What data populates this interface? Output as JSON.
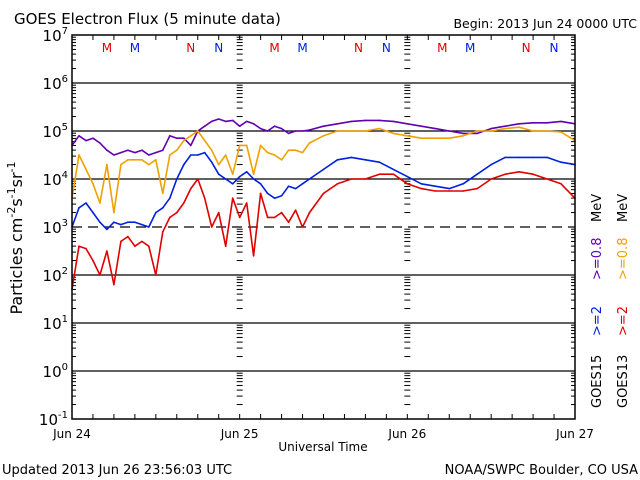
{
  "chart_data": {
    "type": "line",
    "title": "GOES Electron Flux (5 minute data)",
    "begin_label": "Begin: 2013 Jun 24 0000 UTC",
    "xlabel": "Universal Time",
    "ylabel": "Particles cm",
    "ylabel_parts": {
      "base": "Particles cm",
      "e1": "-2",
      "s": "s",
      "e2": "-1",
      "sr": "sr",
      "e3": "-1"
    },
    "yscale": "log",
    "ylim_exp": [
      -1,
      7
    ],
    "ytick_exps": [
      "7",
      "6",
      "5",
      "4",
      "3",
      "2",
      "1",
      "0",
      "-1"
    ],
    "ytick_base": "10",
    "xlim_hours": [
      0,
      72
    ],
    "xtick_labels": [
      "Jun 24",
      "Jun 25",
      "Jun 26",
      "Jun 27"
    ],
    "dashed_threshold_exp": 3,
    "markers": [
      {
        "label": "M",
        "color": "#e00000",
        "hour": 5
      },
      {
        "label": "M",
        "color": "#0020e0",
        "hour": 9
      },
      {
        "label": "N",
        "color": "#e00000",
        "hour": 17
      },
      {
        "label": "N",
        "color": "#0020e0",
        "hour": 21
      },
      {
        "label": "M",
        "color": "#e00000",
        "hour": 29
      },
      {
        "label": "M",
        "color": "#0020e0",
        "hour": 33
      },
      {
        "label": "N",
        "color": "#e00000",
        "hour": 41
      },
      {
        "label": "N",
        "color": "#0020e0",
        "hour": 45
      },
      {
        "label": "M",
        "color": "#e00000",
        "hour": 53
      },
      {
        "label": "M",
        "color": "#0020e0",
        "hour": 57
      },
      {
        "label": "N",
        "color": "#e00000",
        "hour": 65
      },
      {
        "label": "N",
        "color": "#0020e0",
        "hour": 69
      }
    ],
    "legend": [
      {
        "text": "GOES15",
        "color": "#000000"
      },
      {
        "text": ">=2",
        "color": "#0020e0"
      },
      {
        "text": ">=0.8",
        "color": "#6000b0"
      },
      {
        "text": "MeV",
        "color": "#000000"
      },
      {
        "text": "GOES13",
        "color": "#000000"
      },
      {
        "text": ">=2",
        "color": "#e00000"
      },
      {
        "text": ">=0.8",
        "color": "#f0a000"
      },
      {
        "text": "MeV",
        "color": "#000000"
      }
    ],
    "series": [
      {
        "name": "GOES15 >=0.8 MeV",
        "color": "#6000b0",
        "hours": [
          0,
          1,
          2,
          3,
          4,
          5,
          6,
          7,
          8,
          9,
          10,
          11,
          12,
          13,
          14,
          15,
          16,
          17,
          18,
          19,
          20,
          21,
          22,
          23,
          24,
          25,
          26,
          27,
          28,
          29,
          30,
          31,
          32,
          33,
          34,
          36,
          38,
          40,
          42,
          44,
          46,
          48,
          50,
          52,
          54,
          56,
          58,
          60,
          62,
          64,
          66,
          68,
          70,
          72
        ],
        "log_values": [
          4.7,
          4.9,
          4.8,
          4.85,
          4.75,
          4.6,
          4.5,
          4.55,
          4.6,
          4.55,
          4.6,
          4.5,
          4.55,
          4.6,
          4.9,
          4.85,
          4.85,
          4.7,
          5.0,
          5.1,
          5.2,
          5.25,
          5.2,
          5.22,
          5.1,
          5.2,
          5.15,
          5.05,
          5.0,
          5.1,
          5.05,
          4.95,
          5.0,
          5.0,
          5.02,
          5.1,
          5.15,
          5.2,
          5.22,
          5.22,
          5.2,
          5.15,
          5.1,
          5.05,
          5.0,
          4.95,
          4.95,
          5.05,
          5.1,
          5.15,
          5.17,
          5.17,
          5.2,
          5.15
        ]
      },
      {
        "name": "GOES13 >=0.8 MeV",
        "color": "#f0a000",
        "hours": [
          0,
          1,
          2,
          3,
          4,
          5,
          6,
          7,
          8,
          9,
          10,
          11,
          12,
          13,
          14,
          15,
          16,
          17,
          18,
          19,
          20,
          21,
          22,
          23,
          24,
          25,
          26,
          27,
          28,
          29,
          30,
          31,
          32,
          33,
          34,
          36,
          38,
          40,
          42,
          44,
          46,
          48,
          50,
          52,
          54,
          56,
          58,
          60,
          62,
          64,
          66,
          68,
          70,
          72
        ],
        "log_values": [
          3.6,
          4.5,
          4.2,
          3.9,
          3.5,
          4.3,
          3.3,
          4.3,
          4.4,
          4.4,
          4.4,
          4.3,
          4.4,
          3.7,
          4.5,
          4.6,
          4.8,
          4.9,
          5.0,
          4.8,
          4.6,
          4.3,
          4.5,
          4.1,
          4.7,
          4.7,
          4.1,
          4.7,
          4.55,
          4.5,
          4.4,
          4.6,
          4.6,
          4.55,
          4.75,
          4.9,
          5.0,
          5.0,
          5.0,
          5.05,
          4.95,
          4.9,
          4.85,
          4.85,
          4.85,
          4.9,
          5.0,
          5.0,
          5.05,
          5.08,
          5.0,
          5.0,
          4.98,
          4.8
        ]
      },
      {
        "name": "GOES15 >=2 MeV",
        "color": "#0020e0",
        "hours": [
          0,
          1,
          2,
          3,
          4,
          5,
          6,
          7,
          8,
          9,
          10,
          11,
          12,
          13,
          14,
          15,
          16,
          17,
          18,
          19,
          20,
          21,
          22,
          23,
          24,
          25,
          26,
          27,
          28,
          29,
          30,
          31,
          32,
          33,
          34,
          36,
          38,
          40,
          42,
          44,
          46,
          48,
          50,
          52,
          54,
          56,
          58,
          60,
          62,
          64,
          66,
          68,
          70,
          72
        ],
        "log_values": [
          3.0,
          3.4,
          3.5,
          3.3,
          3.1,
          2.95,
          3.1,
          3.05,
          3.1,
          3.1,
          3.05,
          3.0,
          3.3,
          3.4,
          3.6,
          4.0,
          4.3,
          4.5,
          4.5,
          4.55,
          4.35,
          4.1,
          4.0,
          3.9,
          4.05,
          4.15,
          4.0,
          3.9,
          3.7,
          3.6,
          3.65,
          3.85,
          3.8,
          3.9,
          4.0,
          4.2,
          4.4,
          4.45,
          4.4,
          4.35,
          4.2,
          4.05,
          3.9,
          3.85,
          3.8,
          3.9,
          4.1,
          4.3,
          4.45,
          4.45,
          4.45,
          4.45,
          4.35,
          4.3
        ]
      },
      {
        "name": "GOES13 >=2 MeV",
        "color": "#e00000",
        "hours": [
          0,
          1,
          2,
          3,
          4,
          5,
          6,
          7,
          8,
          9,
          10,
          11,
          12,
          13,
          14,
          15,
          16,
          17,
          18,
          19,
          20,
          21,
          22,
          23,
          24,
          25,
          26,
          27,
          28,
          29,
          30,
          31,
          32,
          33,
          34,
          36,
          38,
          40,
          42,
          44,
          46,
          48,
          50,
          52,
          54,
          56,
          58,
          60,
          62,
          64,
          66,
          68,
          70,
          72
        ],
        "log_values": [
          1.7,
          2.6,
          2.55,
          2.3,
          2.0,
          2.5,
          1.8,
          2.7,
          2.8,
          2.6,
          2.7,
          2.6,
          2.0,
          2.9,
          3.2,
          3.3,
          3.5,
          3.8,
          4.0,
          3.6,
          3.0,
          3.3,
          2.6,
          3.6,
          3.2,
          3.5,
          2.4,
          3.7,
          3.2,
          3.2,
          3.3,
          3.1,
          3.35,
          3.0,
          3.3,
          3.7,
          3.9,
          4.0,
          4.0,
          4.1,
          4.1,
          3.9,
          3.8,
          3.75,
          3.75,
          3.75,
          3.8,
          4.0,
          4.1,
          4.15,
          4.1,
          4.0,
          3.9,
          3.6
        ]
      }
    ]
  },
  "footer": {
    "updated": "Updated 2013 Jun 26 23:56:03 UTC",
    "credit": "NOAA/SWPC Boulder, CO USA"
  }
}
